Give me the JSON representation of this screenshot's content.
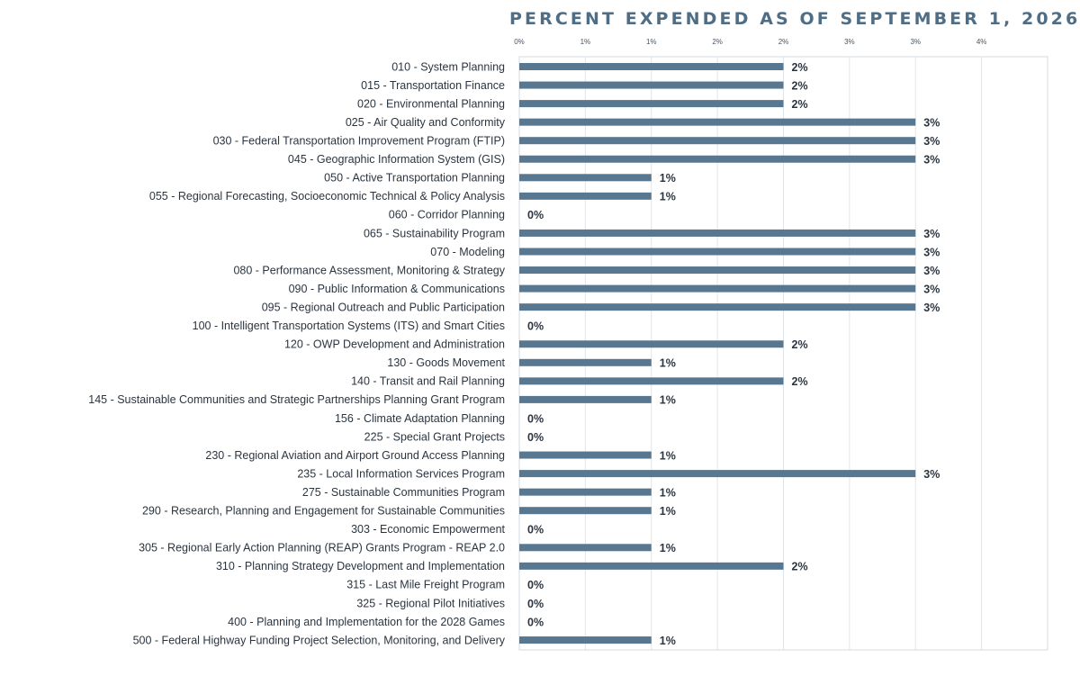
{
  "chart_data": {
    "type": "bar",
    "orientation": "horizontal",
    "title": "PERCENT EXPENDED AS OF SEPTEMBER 1, 2026",
    "xlabel": "",
    "ylabel": "",
    "xlim": [
      0,
      4
    ],
    "x_ticks": [
      0,
      0.5,
      1,
      1.5,
      2,
      2.5,
      3,
      3.5
    ],
    "tick_labels": [
      "0%",
      "1%",
      "1%",
      "2%",
      "2%",
      "3%",
      "3%",
      "4%"
    ],
    "grid": true,
    "bar_color": "#587891",
    "categories": [
      "010 - System Planning",
      "015 - Transportation Finance",
      "020 - Environmental Planning",
      "025 - Air Quality and Conformity",
      "030 - Federal Transportation Improvement Program (FTIP)",
      "045 - Geographic Information System (GIS)",
      "050 - Active Transportation Planning",
      "055 - Regional Forecasting, Socioeconomic Technical & Policy Analysis",
      "060 - Corridor Planning",
      "065 - Sustainability Program",
      "070 - Modeling",
      "080 - Performance Assessment, Monitoring & Strategy",
      "090 - Public Information & Communications",
      "095 - Regional Outreach and Public Participation",
      "100 - Intelligent Transportation Systems (ITS) and Smart Cities",
      "120 - OWP Development and Administration",
      "130 - Goods Movement",
      "140 - Transit and Rail Planning",
      "145 - Sustainable Communities and Strategic Partnerships Planning Grant Program",
      "156 - Climate Adaptation Planning",
      "225 - Special Grant Projects",
      "230 - Regional Aviation and Airport Ground Access Planning",
      "235 - Local Information Services Program",
      "275 - Sustainable Communities Program",
      "290 - Research, Planning and Engagement for Sustainable Communities",
      "303 - Economic Empowerment",
      "305 - Regional Early Action Planning (REAP) Grants Program - REAP 2.0",
      "310 - Planning Strategy Development and Implementation",
      "315 - Last Mile Freight Program",
      "325 - Regional Pilot Initiatives",
      "400 - Planning and Implementation for the 2028 Games",
      "500 - Federal Highway Funding Project Selection, Monitoring, and Delivery"
    ],
    "values": [
      2.0,
      2.0,
      2.0,
      3.0,
      3.0,
      3.0,
      1.0,
      1.0,
      0,
      3.0,
      3.0,
      3.0,
      3.0,
      3.0,
      0,
      2.0,
      1.0,
      2.0,
      1.0,
      0,
      0,
      1.0,
      3.0,
      1.0,
      1.0,
      0,
      1.0,
      2.0,
      0,
      0,
      0,
      1.0
    ],
    "value_labels": [
      "2%",
      "2%",
      "2%",
      "3%",
      "3%",
      "3%",
      "1%",
      "1%",
      "0%",
      "3%",
      "3%",
      "3%",
      "3%",
      "3%",
      "0%",
      "2%",
      "1%",
      "2%",
      "1%",
      "0%",
      "0%",
      "1%",
      "3%",
      "1%",
      "1%",
      "0%",
      "1%",
      "2%",
      "0%",
      "0%",
      "0%",
      "1%"
    ]
  }
}
